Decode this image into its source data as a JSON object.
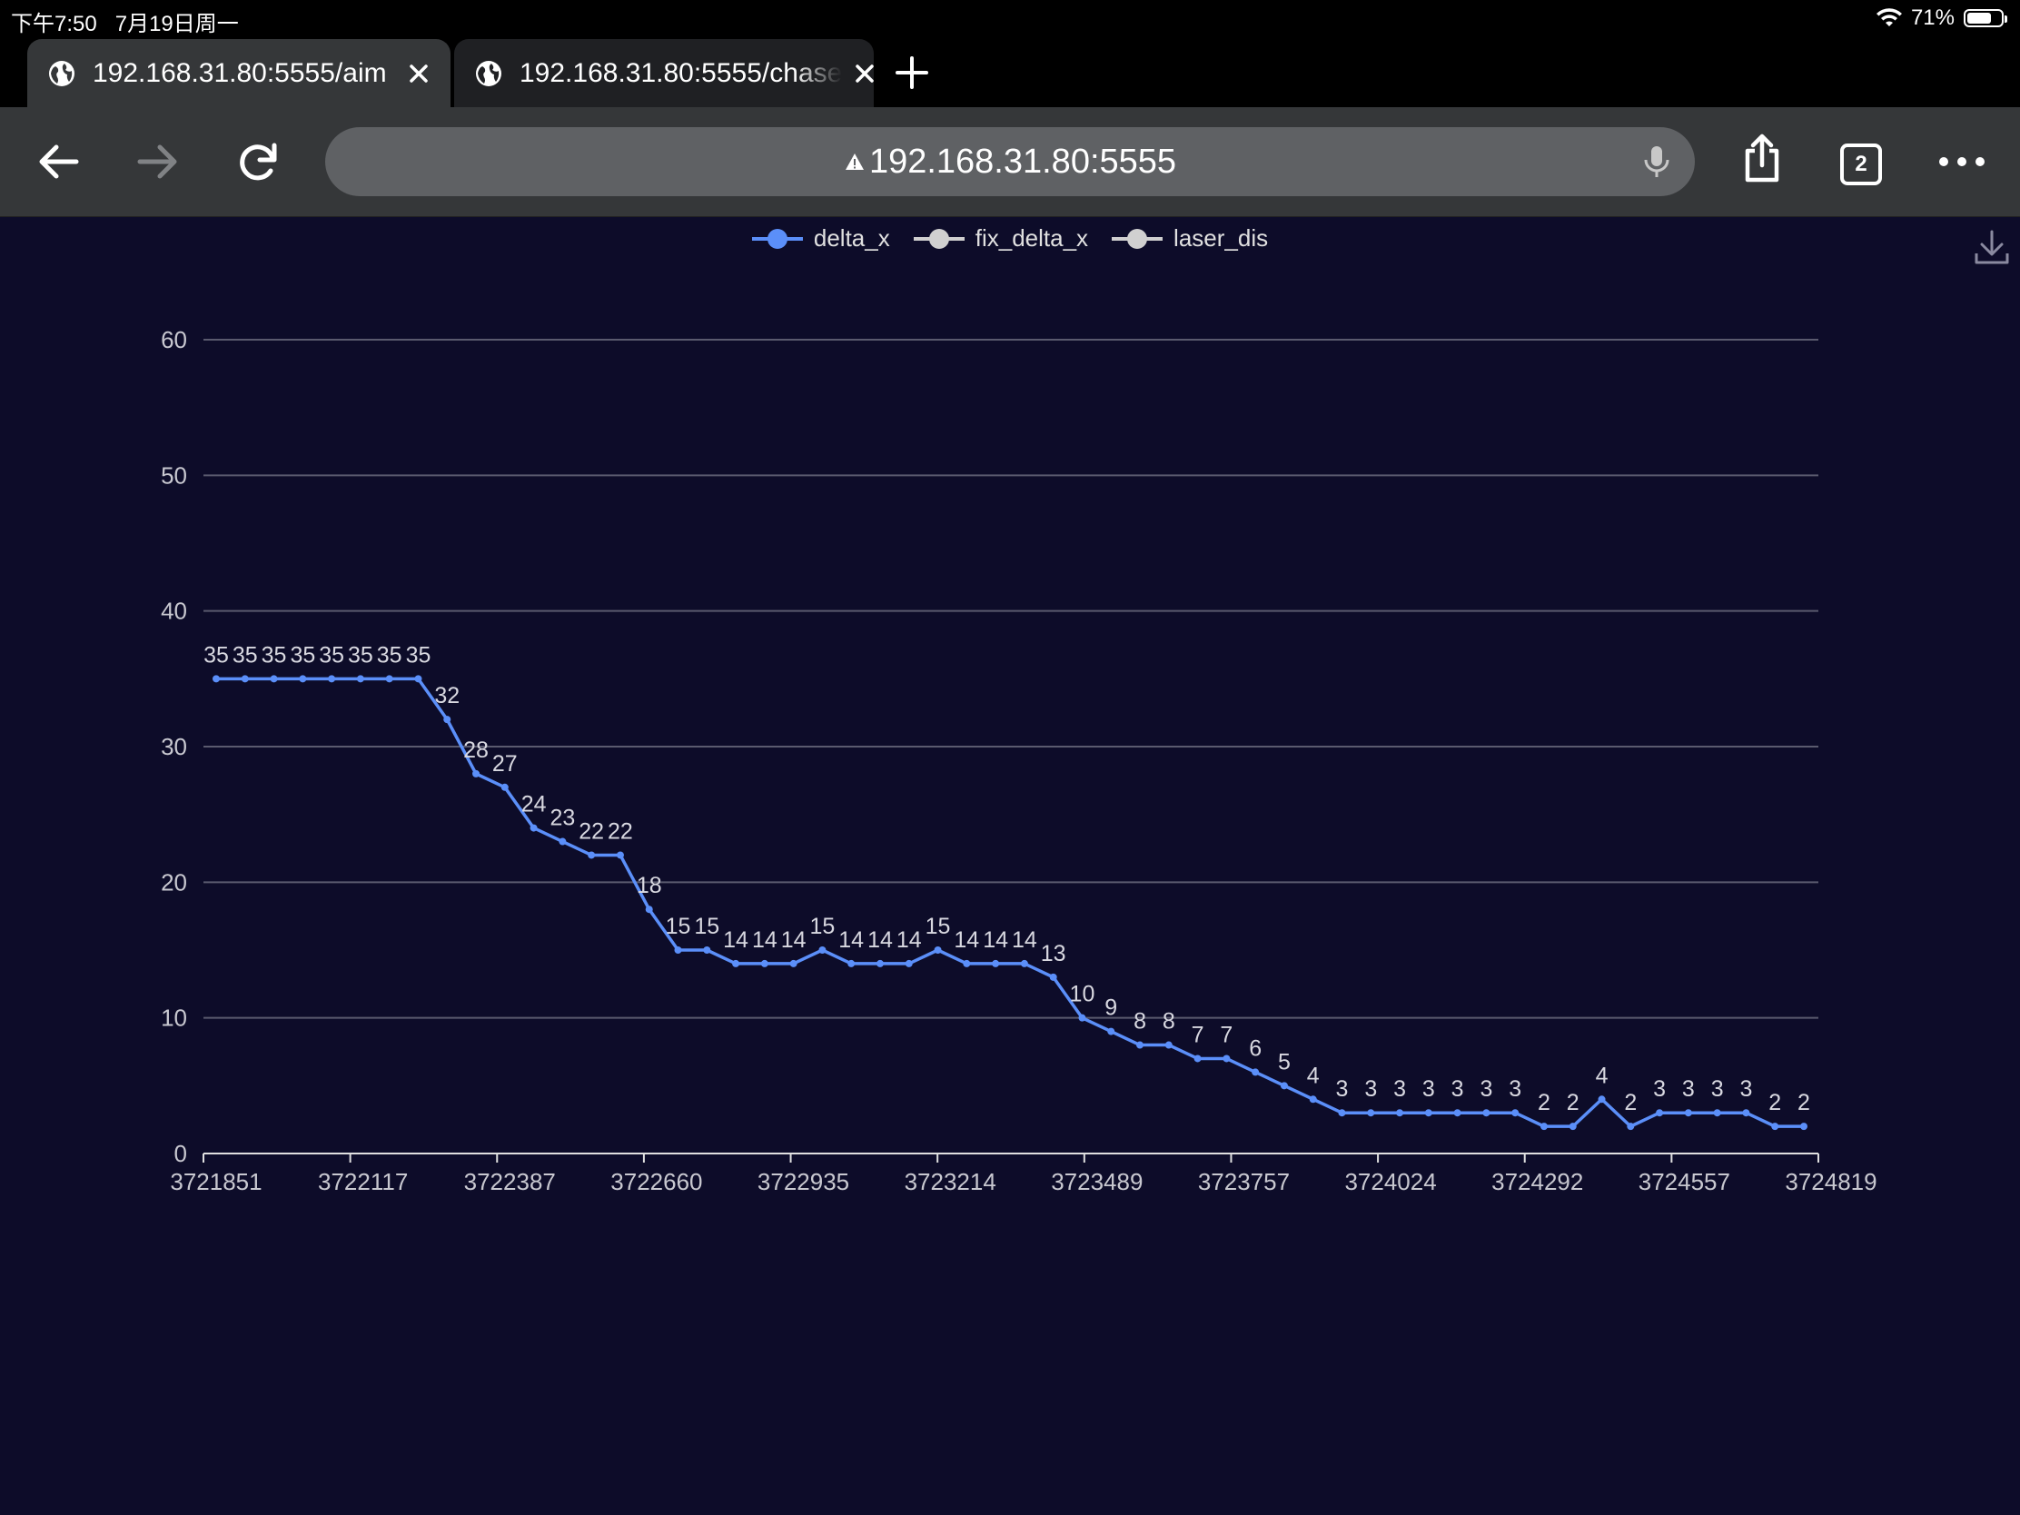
{
  "status_bar": {
    "time": "下午7:50",
    "date": "7月19日周一",
    "battery": "71%",
    "battery_level": 0.71
  },
  "tabs": [
    {
      "title": "192.168.31.80:5555/aim",
      "active": true
    },
    {
      "title": "192.168.31.80:5555/chase",
      "active": false
    }
  ],
  "toolbar": {
    "address": "192.168.31.80:5555",
    "tab_count": "2"
  },
  "icons": {
    "back": "back-arrow-icon",
    "forward": "forward-arrow-icon",
    "reload": "reload-icon",
    "share": "share-icon",
    "menu": "more-icon",
    "download": "download-icon"
  },
  "colors": {
    "series": "#5b8ff9",
    "inactive_legend": "#d0d0d0",
    "grid": "#5a5a6e",
    "background": "#0d0c29"
  },
  "chart_data": {
    "type": "line",
    "legend": [
      "delta_x",
      "fix_delta_x",
      "laser_dis"
    ],
    "legend_active": [
      true,
      false,
      false
    ],
    "ylim": [
      0,
      60
    ],
    "yticks": [
      0,
      10,
      20,
      30,
      40,
      50,
      60
    ],
    "xtick_labels": [
      "3721851",
      "3722117",
      "3722387",
      "3722660",
      "3722935",
      "3723214",
      "3723489",
      "3723757",
      "3724024",
      "3724292",
      "3724557",
      "3724819"
    ],
    "series": [
      {
        "name": "delta_x",
        "values": [
          35,
          35,
          35,
          35,
          35,
          35,
          35,
          35,
          32,
          28,
          27,
          24,
          23,
          22,
          22,
          18,
          15,
          15,
          14,
          14,
          14,
          15,
          14,
          14,
          14,
          15,
          14,
          14,
          14,
          13,
          10,
          9,
          8,
          8,
          7,
          7,
          6,
          5,
          4,
          3,
          3,
          3,
          3,
          3,
          3,
          3,
          2,
          2,
          4,
          2,
          3,
          3,
          3,
          3,
          2,
          2
        ]
      }
    ]
  }
}
